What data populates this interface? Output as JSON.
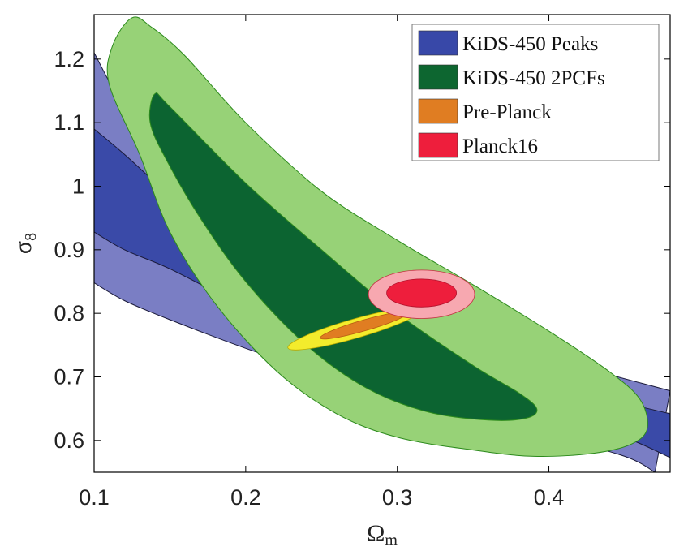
{
  "chart_data": {
    "type": "contour",
    "xlabel_main": "Ω",
    "xlabel_sub": "m",
    "ylabel_main": "σ",
    "ylabel_sub": "8",
    "xlim": [
      0.1,
      0.48
    ],
    "ylim": [
      0.55,
      1.27
    ],
    "xticks": [
      {
        "v": 0.1,
        "label": "0.1"
      },
      {
        "v": 0.2,
        "label": "0.2"
      },
      {
        "v": 0.3,
        "label": "0.3"
      },
      {
        "v": 0.4,
        "label": "0.4"
      }
    ],
    "yticks": [
      {
        "v": 0.6,
        "label": "0.6"
      },
      {
        "v": 0.7,
        "label": "0.7"
      },
      {
        "v": 0.8,
        "label": "0.8"
      },
      {
        "v": 0.9,
        "label": "0.9"
      },
      {
        "v": 1.0,
        "label": "1"
      },
      {
        "v": 1.1,
        "label": "1.1"
      },
      {
        "v": 1.2,
        "label": "1.2"
      }
    ],
    "legend": {
      "position": "top-right",
      "entries": [
        {
          "label": "KiDS-450 Peaks",
          "color": "#3848a8"
        },
        {
          "label": "KiDS-450 2PCFs",
          "color": "#0d6630"
        },
        {
          "label": "Pre-Planck",
          "color": "#e07d22"
        },
        {
          "label": "Planck16",
          "color": "#ee1e3c"
        }
      ]
    },
    "colors": {
      "peaks_outer": "#7a7ec4",
      "peaks_inner": "#3a4aa8",
      "pcf_outer": "#97d277",
      "pcf_inner": "#0c6431",
      "pcf_edge": "#2c8a1c",
      "preplanck_outer": "#f3ec2c",
      "preplanck_inner": "#e07d22",
      "planck_outer": "#f7a8b0",
      "planck_inner": "#ee1e3c"
    },
    "series": [
      {
        "name": "KiDS-450 Peaks",
        "level": "outer",
        "upper": [
          [
            0.1,
            1.21
          ],
          [
            0.12,
            1.125
          ],
          [
            0.15,
            1.045
          ],
          [
            0.2,
            0.93
          ],
          [
            0.25,
            0.868
          ],
          [
            0.3,
            0.823
          ],
          [
            0.35,
            0.77
          ],
          [
            0.4,
            0.73
          ],
          [
            0.48,
            0.678
          ]
        ],
        "lower": [
          [
            0.1,
            0.848
          ],
          [
            0.12,
            0.82
          ],
          [
            0.15,
            0.79
          ],
          [
            0.2,
            0.745
          ],
          [
            0.25,
            0.705
          ],
          [
            0.3,
            0.67
          ],
          [
            0.35,
            0.638
          ],
          [
            0.4,
            0.608
          ],
          [
            0.45,
            0.575
          ],
          [
            0.47,
            0.55
          ]
        ]
      },
      {
        "name": "KiDS-450 Peaks",
        "level": "inner",
        "upper": [
          [
            0.1,
            1.09
          ],
          [
            0.12,
            1.05
          ],
          [
            0.15,
            0.985
          ],
          [
            0.2,
            0.88
          ],
          [
            0.25,
            0.818
          ],
          [
            0.3,
            0.772
          ],
          [
            0.35,
            0.728
          ],
          [
            0.4,
            0.688
          ],
          [
            0.48,
            0.642
          ]
        ],
        "lower": [
          [
            0.1,
            0.928
          ],
          [
            0.12,
            0.9
          ],
          [
            0.15,
            0.87
          ],
          [
            0.2,
            0.81
          ],
          [
            0.25,
            0.76
          ],
          [
            0.3,
            0.718
          ],
          [
            0.35,
            0.678
          ],
          [
            0.4,
            0.645
          ],
          [
            0.45,
            0.605
          ],
          [
            0.48,
            0.573
          ]
        ]
      },
      {
        "name": "KiDS-450 2PCFs",
        "level": "outer",
        "boundary": [
          [
            0.125,
            1.265
          ],
          [
            0.138,
            1.25
          ],
          [
            0.16,
            1.205
          ],
          [
            0.2,
            1.1
          ],
          [
            0.25,
            0.992
          ],
          [
            0.3,
            0.915
          ],
          [
            0.35,
            0.845
          ],
          [
            0.4,
            0.772
          ],
          [
            0.44,
            0.708
          ],
          [
            0.46,
            0.665
          ],
          [
            0.465,
            0.62
          ],
          [
            0.455,
            0.595
          ],
          [
            0.43,
            0.58
          ],
          [
            0.39,
            0.575
          ],
          [
            0.35,
            0.585
          ],
          [
            0.3,
            0.605
          ],
          [
            0.26,
            0.642
          ],
          [
            0.22,
            0.71
          ],
          [
            0.18,
            0.815
          ],
          [
            0.15,
            0.928
          ],
          [
            0.13,
            1.05
          ],
          [
            0.11,
            1.16
          ],
          [
            0.112,
            1.22
          ]
        ]
      },
      {
        "name": "KiDS-450 2PCFs",
        "level": "inner",
        "boundary": [
          [
            0.14,
            1.145
          ],
          [
            0.15,
            1.125
          ],
          [
            0.2,
            1.005
          ],
          [
            0.25,
            0.9
          ],
          [
            0.3,
            0.8
          ],
          [
            0.35,
            0.718
          ],
          [
            0.38,
            0.675
          ],
          [
            0.392,
            0.65
          ],
          [
            0.385,
            0.635
          ],
          [
            0.36,
            0.632
          ],
          [
            0.32,
            0.645
          ],
          [
            0.28,
            0.682
          ],
          [
            0.24,
            0.75
          ],
          [
            0.2,
            0.85
          ],
          [
            0.17,
            0.95
          ],
          [
            0.148,
            1.04
          ],
          [
            0.137,
            1.1
          ]
        ]
      },
      {
        "name": "Pre-Planck",
        "level": "outer",
        "center": [
          0.272,
          0.776
        ],
        "rx": 0.046,
        "ry": 0.015,
        "angle_deg": 16
      },
      {
        "name": "Pre-Planck",
        "level": "inner",
        "center": [
          0.278,
          0.781
        ],
        "rx": 0.03,
        "ry": 0.0085,
        "angle_deg": 16
      },
      {
        "name": "Planck16",
        "level": "outer",
        "center": [
          0.316,
          0.83
        ],
        "rx": 0.035,
        "ry": 0.038,
        "angle_deg": 0
      },
      {
        "name": "Planck16",
        "level": "inner",
        "center": [
          0.316,
          0.832
        ],
        "rx": 0.023,
        "ry": 0.022,
        "angle_deg": 0
      }
    ]
  }
}
